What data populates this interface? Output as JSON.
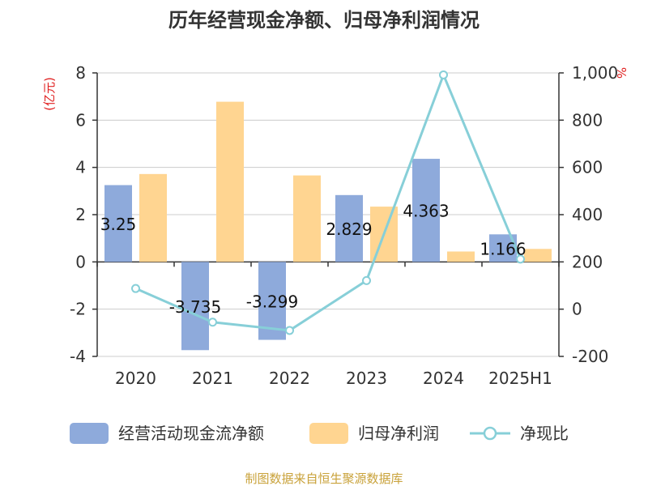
{
  "chart_data": {
    "type": "bar",
    "title": "历年经营现金净额、归母净利润情况",
    "left_unit": "(亿元)",
    "right_unit": "%",
    "categories": [
      "2020",
      "2021",
      "2022",
      "2023",
      "2024",
      "2025H1"
    ],
    "ylim_left": [
      -4,
      8
    ],
    "yticks_left": [
      "-4",
      "-2",
      "0",
      "2",
      "4",
      "6",
      "8"
    ],
    "ylim_right": [
      -200,
      1000
    ],
    "yticks_right": [
      "-200",
      "0",
      "200",
      "400",
      "600",
      "800",
      "1,000"
    ],
    "grid": true,
    "legend_position": "bottom",
    "series": [
      {
        "name": "经营活动现金流净额",
        "kind": "bar",
        "axis": "left",
        "color": "#8eaadb",
        "values": [
          3.25,
          -3.735,
          -3.299,
          2.829,
          4.363,
          1.166
        ],
        "labels": [
          "3.25",
          "-3.735",
          "-3.299",
          "2.829",
          "4.363",
          "1.166"
        ]
      },
      {
        "name": "归母净利润",
        "kind": "bar",
        "axis": "left",
        "color": "#ffd591",
        "values": [
          3.72,
          6.78,
          3.66,
          2.34,
          0.44,
          0.55
        ]
      },
      {
        "name": "净现比",
        "kind": "line",
        "axis": "right",
        "color": "#87cfd8",
        "values": [
          87.4,
          -55.1,
          -90.1,
          120.9,
          991.6,
          212.0
        ]
      }
    ]
  },
  "source": "制图数据来自恒生聚源数据库"
}
